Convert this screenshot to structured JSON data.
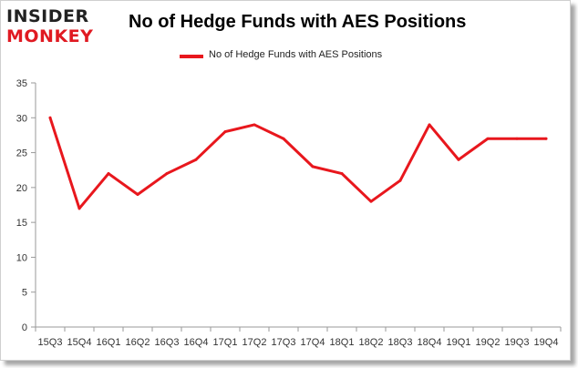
{
  "logo": {
    "line1": "INSIDER",
    "line2": "MONKEY"
  },
  "colors": {
    "series": "#e8171d",
    "axis": "#9a9a9a",
    "text": "#333333",
    "logo_red": "#e01a22"
  },
  "chart_data": {
    "type": "line",
    "title": "No of Hedge Funds with AES Positions",
    "xlabel": "",
    "ylabel": "",
    "categories": [
      "15Q3",
      "15Q4",
      "16Q1",
      "16Q2",
      "16Q3",
      "16Q4",
      "17Q1",
      "17Q2",
      "17Q3",
      "17Q4",
      "18Q1",
      "18Q2",
      "18Q3",
      "18Q4",
      "19Q1",
      "19Q2",
      "19Q3",
      "19Q4"
    ],
    "series": [
      {
        "name": "No of Hedge Funds with AES Positions",
        "values": [
          30,
          17,
          22,
          19,
          22,
          24,
          28,
          29,
          27,
          23,
          22,
          18,
          21,
          29,
          24,
          27,
          27,
          27
        ]
      }
    ],
    "ylim": [
      0,
      35
    ],
    "yticks": [
      0,
      5,
      10,
      15,
      20,
      25,
      30,
      35
    ],
    "grid": false,
    "legend": "top-center"
  }
}
